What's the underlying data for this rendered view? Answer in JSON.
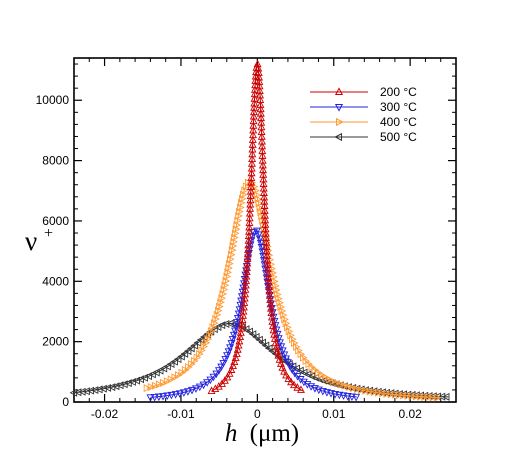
{
  "chart_data": {
    "type": "line",
    "title": "",
    "xlabel": {
      "italic_part": "h",
      "unit": "(μm)"
    },
    "ylabel": {
      "base": "ν",
      "superscript": "+"
    },
    "xlim": [
      -0.024,
      0.026
    ],
    "ylim": [
      0,
      11400
    ],
    "x_ticks": [
      -0.02,
      -0.01,
      0,
      0.01,
      0.02
    ],
    "x_tick_labels": [
      "-0.02",
      "-0.01",
      "0",
      "0.01",
      "0.02"
    ],
    "y_ticks": [
      0,
      2000,
      4000,
      6000,
      8000,
      10000
    ],
    "y_tick_labels": [
      "0",
      "2000",
      "4000",
      "6000",
      "8000",
      "10000"
    ],
    "grid": false,
    "legend_position": "top-right",
    "series": [
      {
        "name": "200  °C",
        "color": "#cc0000",
        "marker": "triangle-up",
        "peak_x": 0.0,
        "peak_y": 11200,
        "width": 0.0011,
        "x_range": [
          -0.006,
          0.006
        ]
      },
      {
        "name": "300  °C",
        "color": "#2222dd",
        "marker": "triangle-down",
        "peak_x": -0.0002,
        "peak_y": 5700,
        "width": 0.0023,
        "x_range": [
          -0.014,
          0.013
        ]
      },
      {
        "name": "400  °C",
        "color": "#ff9933",
        "marker": "triangle-right",
        "peak_x": -0.001,
        "peak_y": 7300,
        "width": 0.0035,
        "x_range": [
          -0.0145,
          0.024
        ]
      },
      {
        "name": "500  °C",
        "color": "#333333",
        "marker": "triangle-left",
        "peak_x": -0.0035,
        "peak_y": 2600,
        "width": 0.0075,
        "x_range": [
          -0.024,
          0.025
        ]
      }
    ]
  }
}
